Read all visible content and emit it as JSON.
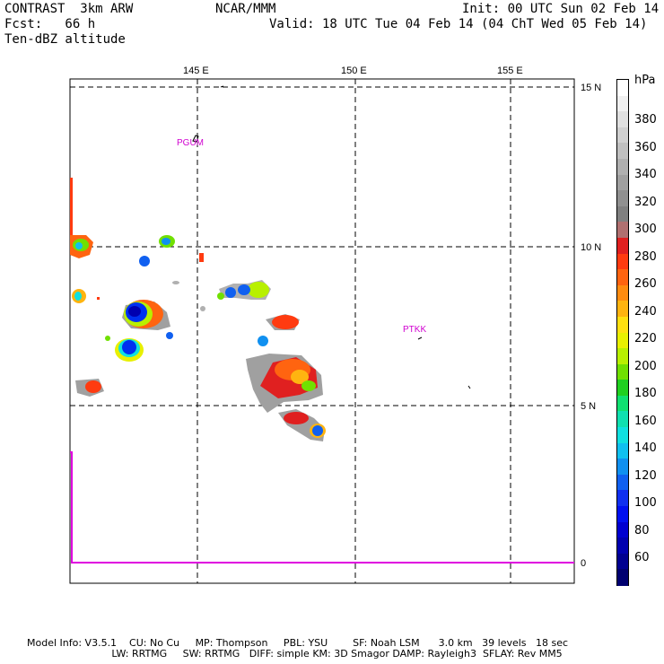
{
  "header": {
    "model": "CONTRAST  3km ARW",
    "center": "NCAR/MMM",
    "init": "Init: 00 UTC Sun 02 Feb 14",
    "fcst": "Fcst:   66 h",
    "valid": "Valid: 18 UTC Tue 04 Feb 14 (04 ChT Wed 05 Feb 14)",
    "field": "Ten-dBZ altitude"
  },
  "map": {
    "lon_labels": [
      "145 E",
      "150 E",
      "155 E"
    ],
    "lat_labels": [
      "15 N",
      "10 N",
      "5 N"
    ],
    "right_axis_zero": "0",
    "stations": [
      "PGUM",
      "PTKK"
    ],
    "grid": true,
    "colors": {
      "station": "#d000d0",
      "trace": "#e000e0"
    }
  },
  "colorbar": {
    "unit": "hPa",
    "labels": [
      "380",
      "360",
      "340",
      "320",
      "300",
      "280",
      "260",
      "240",
      "220",
      "200",
      "180",
      "160",
      "140",
      "120",
      "100",
      "80",
      "60"
    ],
    "colors": [
      "#ffffff",
      "#f0f0f0",
      "#e0e0e0",
      "#d0d0d0",
      "#c0c0c0",
      "#b0b0b0",
      "#a0a0a0",
      "#909090",
      "#808080",
      "#b07070",
      "#e02020",
      "#ff3b10",
      "#ff6410",
      "#ff8c10",
      "#ffb410",
      "#ffe010",
      "#e8f000",
      "#b8f000",
      "#70e000",
      "#20d020",
      "#10e070",
      "#10e0b0",
      "#10e0e0",
      "#10c0f0",
      "#1090f0",
      "#1060f0",
      "#1030f0",
      "#0010f0",
      "#0000d0",
      "#0000b0",
      "#000090",
      "#000070"
    ]
  },
  "footer": {
    "line1": "Model Info: V3.5.1    CU: No Cu     MP: Thompson     PBL: YSU        SF: Noah LSM      3.0 km   39 levels   18 sec",
    "line2": "                           LW: RRTMG     SW: RRTMG   DIFF: simple KM: 3D Smagor DAMP: Rayleigh3  SFLAY: Rev MM5"
  }
}
